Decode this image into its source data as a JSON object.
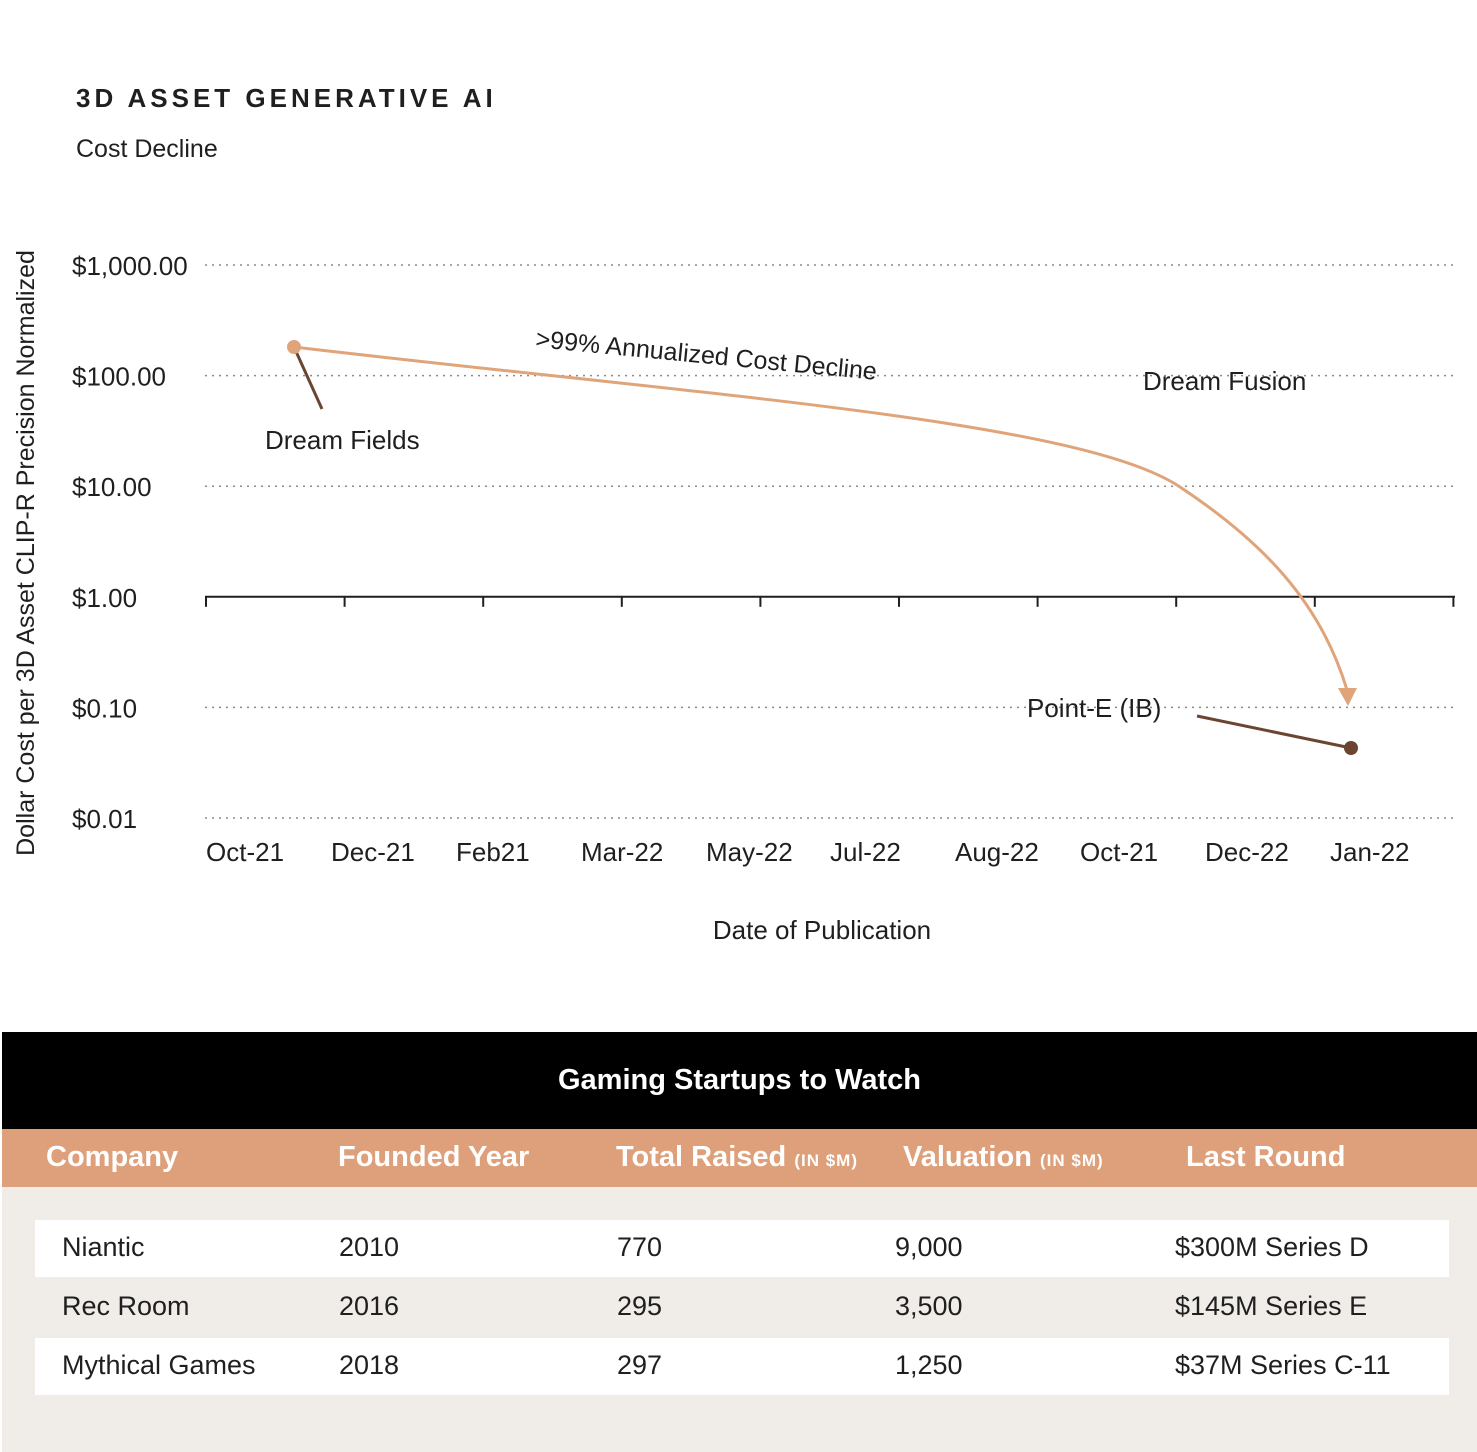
{
  "title": "3D ASSET GENERATIVE AI",
  "subtitle": "Cost Decline",
  "chart_data": {
    "type": "line",
    "title": "3D ASSET GENERATIVE AI",
    "subtitle": "Cost Decline",
    "xlabel": "Date of Publication",
    "ylabel": "Dollar Cost per 3D Asset CLIP-R Precision Normalized",
    "x_tick_labels": [
      "Oct-21",
      "Dec-21",
      "Feb21",
      "Mar-22",
      "May-22",
      "Jul-22",
      "Aug-22",
      "Oct-21",
      "Dec-22",
      "Jan-22"
    ],
    "y_tick_labels": [
      "$1,000.00",
      "$100.00",
      "$10.00",
      "$1.00",
      "$0.10",
      "$0.01"
    ],
    "y_tick_values": [
      1000,
      100,
      10,
      1,
      0.1,
      0.01
    ],
    "yscale": "log",
    "ylim": [
      0.01,
      1000
    ],
    "grid": "horizontal dotted",
    "trend_label": ">99% Annualized Cost Decline",
    "points": [
      {
        "name": "Dream Fields",
        "x_index": 0.43,
        "y": 180,
        "color": "#e0a47a"
      },
      {
        "name": "Point-E (IB)",
        "x_index": 8.7,
        "y": 0.043,
        "color": "#6b4532"
      }
    ],
    "annotations": [
      "Dream Fields",
      "Dream Fusion",
      "Point-E (IB)"
    ],
    "colors": {
      "trend": "#e0a47a",
      "point_e": "#6b4532",
      "dream_fields": "#e0a47a"
    }
  },
  "table": {
    "title": "Gaming Startups to Watch",
    "columns": [
      {
        "label": "Company",
        "unit": ""
      },
      {
        "label": "Founded Year",
        "unit": ""
      },
      {
        "label": "Total Raised",
        "unit": "(IN $M)"
      },
      {
        "label": "Valuation",
        "unit": "(IN $M)"
      },
      {
        "label": "Last Round",
        "unit": ""
      }
    ],
    "rows": [
      [
        "Niantic",
        "2010",
        "770",
        "9,000",
        "$300M Series D"
      ],
      [
        "Rec Room",
        "2016",
        "295",
        "3,500",
        "$145M Series E"
      ],
      [
        "Mythical Games",
        "2018",
        "297",
        "1,250",
        "$37M Series C-11"
      ]
    ],
    "header_color": "#dea07a"
  }
}
